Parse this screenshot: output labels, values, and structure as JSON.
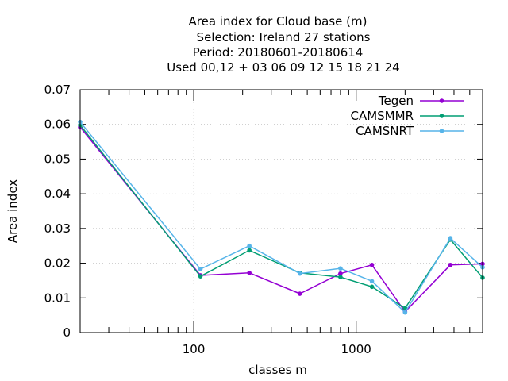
{
  "chart_data": {
    "type": "line",
    "title_lines": [
      "Area index  for Cloud base (m)",
      "Selection: Ireland     27 stations",
      "Period: 20180601-20180614",
      "Used  00,12  + 03 06 09 12 15 18 21 24"
    ],
    "xlabel": "classes m",
    "ylabel": "Area index",
    "x_scale": "log",
    "xlim": [
      20,
      6000
    ],
    "ylim": [
      0,
      0.07
    ],
    "x_ticks": [
      {
        "value": 100,
        "label": "100"
      },
      {
        "value": 1000,
        "label": "1000"
      }
    ],
    "y_ticks": [
      {
        "value": 0,
        "label": "0"
      },
      {
        "value": 0.01,
        "label": "0.01"
      },
      {
        "value": 0.02,
        "label": "0.02"
      },
      {
        "value": 0.03,
        "label": "0.03"
      },
      {
        "value": 0.04,
        "label": "0.04"
      },
      {
        "value": 0.05,
        "label": "0.05"
      },
      {
        "value": 0.06,
        "label": "0.06"
      },
      {
        "value": 0.07,
        "label": "0.07"
      }
    ],
    "grid": true,
    "legend_position": "top-right",
    "x": [
      20,
      110,
      220,
      450,
      800,
      1250,
      2000,
      3800,
      6000
    ],
    "series": [
      {
        "name": "Tegen",
        "color": "#9400d3",
        "values": [
          0.0592,
          0.0165,
          0.0172,
          0.0112,
          0.017,
          0.0195,
          0.006,
          0.0195,
          0.0198
        ]
      },
      {
        "name": "CAMSMMR",
        "color": "#009e73",
        "values": [
          0.0598,
          0.0162,
          0.0237,
          0.0172,
          0.016,
          0.0132,
          0.007,
          0.0268,
          0.0158
        ]
      },
      {
        "name": "CAMSNRT",
        "color": "#56b4e9",
        "values": [
          0.0607,
          0.0183,
          0.025,
          0.017,
          0.0185,
          0.0148,
          0.0058,
          0.0272,
          0.0188
        ]
      }
    ]
  }
}
